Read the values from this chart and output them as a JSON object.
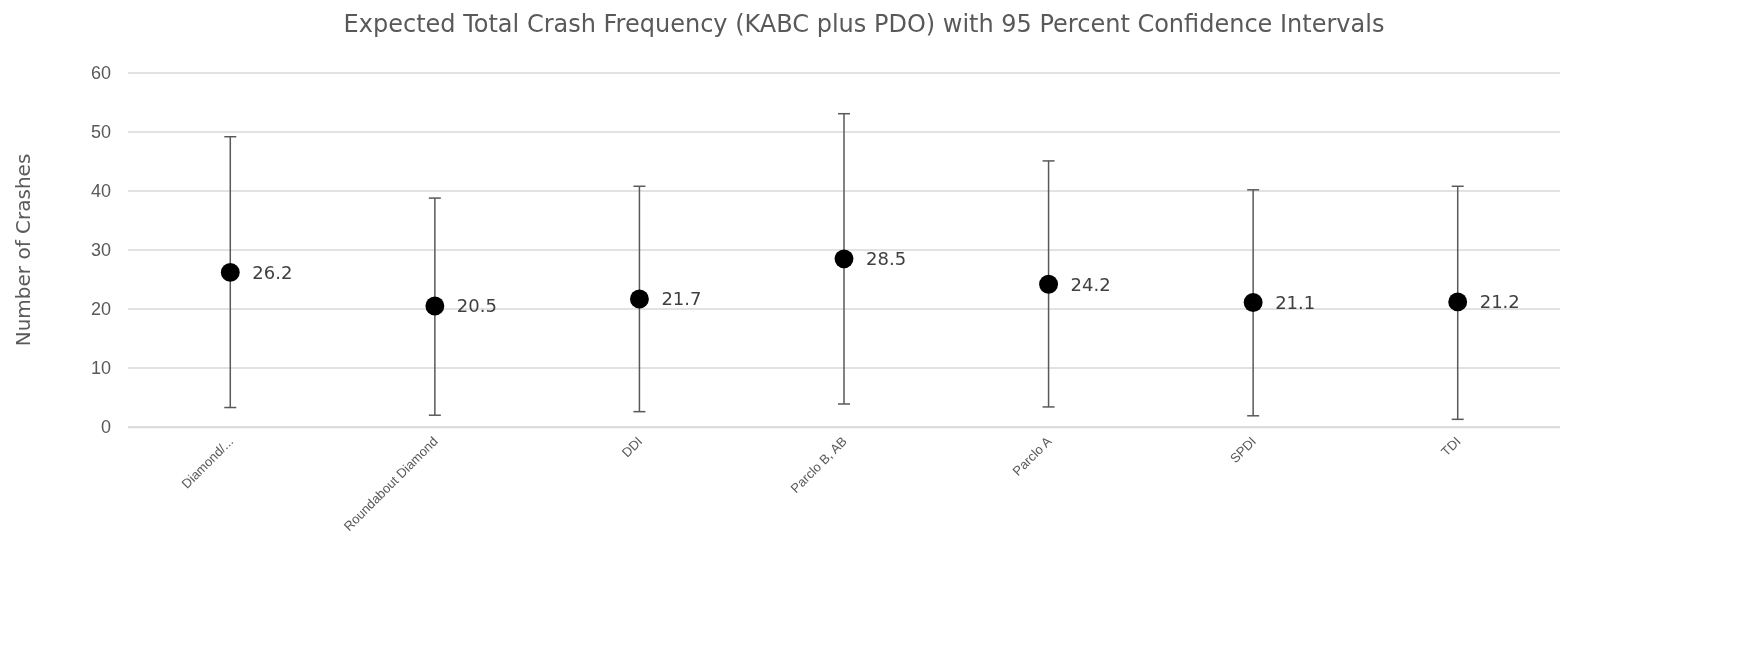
{
  "chart_data": {
    "type": "scatter",
    "title": "Expected Total Crash Frequency (KABC plus PDO) with 95 Percent Confidence Intervals",
    "ylabel": "Number of Crashes",
    "categories": [
      "Diamond/...",
      "Roundabout Diamond",
      "DDI",
      "Parclo B, AB",
      "Parclo A",
      "SPDI",
      "TDI"
    ],
    "values": [
      26.2,
      20.5,
      21.7,
      28.5,
      24.2,
      21.1,
      21.2
    ],
    "errors": [
      [
        3.3,
        49.2
      ],
      [
        2.0,
        38.8
      ],
      [
        2.6,
        40.8
      ],
      [
        3.9,
        53.1
      ],
      [
        3.4,
        45.1
      ],
      [
        1.9,
        40.2
      ],
      [
        1.3,
        40.8
      ]
    ],
    "color": "#000000",
    "marker": "circle",
    "data_labels": true,
    "grid": "y",
    "ylim": [
      0,
      60
    ],
    "yticks": [
      0,
      10,
      20,
      30,
      40,
      50,
      60
    ]
  }
}
